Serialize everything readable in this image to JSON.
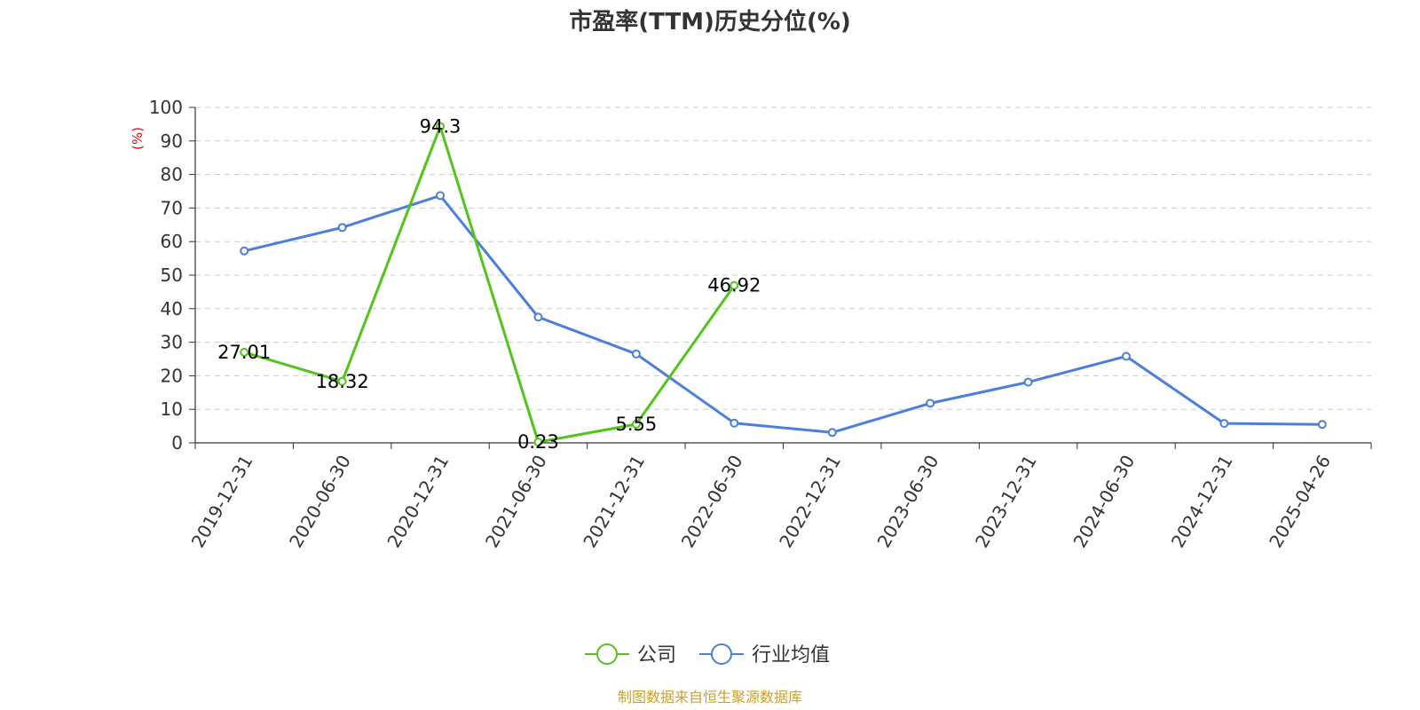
{
  "chart_data": {
    "type": "line",
    "title": "市盈率(TTM)历史分位(%)",
    "ylabel": "(%)",
    "ylim": [
      0,
      100
    ],
    "yticks": [
      0,
      10,
      20,
      30,
      40,
      50,
      60,
      70,
      80,
      90,
      100
    ],
    "categories": [
      "2019-12-31",
      "2020-06-30",
      "2020-12-31",
      "2021-06-30",
      "2021-12-31",
      "2022-06-30",
      "2022-12-31",
      "2023-06-30",
      "2023-12-31",
      "2024-06-30",
      "2024-12-31",
      "2025-04-26"
    ],
    "grid": true,
    "legend_position": "bottom-center",
    "series": [
      {
        "name": "公司",
        "color": "#52c41a",
        "values": [
          27.01,
          18.32,
          94.3,
          0.23,
          5.55,
          46.92,
          null,
          null,
          null,
          null,
          null,
          null
        ],
        "data_labels": [
          "27.01",
          "18.32",
          "94.3",
          "0.23",
          "5.55",
          "46.92"
        ]
      },
      {
        "name": "行业均值",
        "color": "#4a7fdc",
        "values": [
          57.2,
          64.2,
          73.7,
          37.5,
          26.5,
          5.9,
          3.1,
          11.8,
          18.1,
          25.8,
          5.8,
          5.5
        ]
      }
    ],
    "source": "制图数据来自恒生聚源数据库"
  }
}
